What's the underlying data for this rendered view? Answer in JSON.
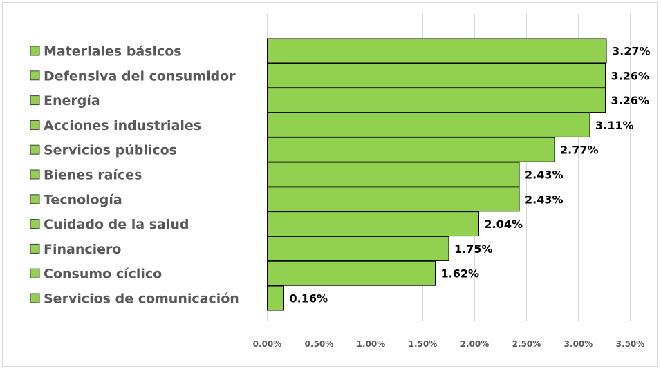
{
  "chart_data": {
    "type": "bar",
    "orientation": "horizontal",
    "categories": [
      "Materiales básicos",
      "Defensiva del consumidor",
      "Energía",
      "Acciones industriales",
      "Servicios públicos",
      "Bienes raíces",
      "Tecnología",
      "Cuidado de la salud",
      "Financiero",
      "Consumo cíclico",
      "Servicios de comunicación"
    ],
    "values": [
      3.27,
      3.26,
      3.26,
      3.11,
      2.77,
      2.43,
      2.43,
      2.04,
      1.75,
      1.62,
      0.16
    ],
    "value_labels": [
      "3.27%",
      "3.26%",
      "3.26%",
      "3.11%",
      "2.77%",
      "2.43%",
      "2.43%",
      "2.04%",
      "1.75%",
      "1.62%",
      "0.16%"
    ],
    "x_ticks": [
      0,
      0.5,
      1.0,
      1.5,
      2.0,
      2.5,
      3.0,
      3.5
    ],
    "x_tick_labels": [
      "0.00%",
      "0.50%",
      "1.00%",
      "1.50%",
      "2.00%",
      "2.50%",
      "3.00%",
      "3.50%"
    ],
    "xlim": [
      0,
      3.5
    ],
    "title": "",
    "xlabel": "",
    "ylabel": "",
    "grid": "vertical",
    "legend": "left",
    "bar_color": "#92d050",
    "bar_edge_color": "#000000",
    "grid_color": "#d9d9d9"
  }
}
